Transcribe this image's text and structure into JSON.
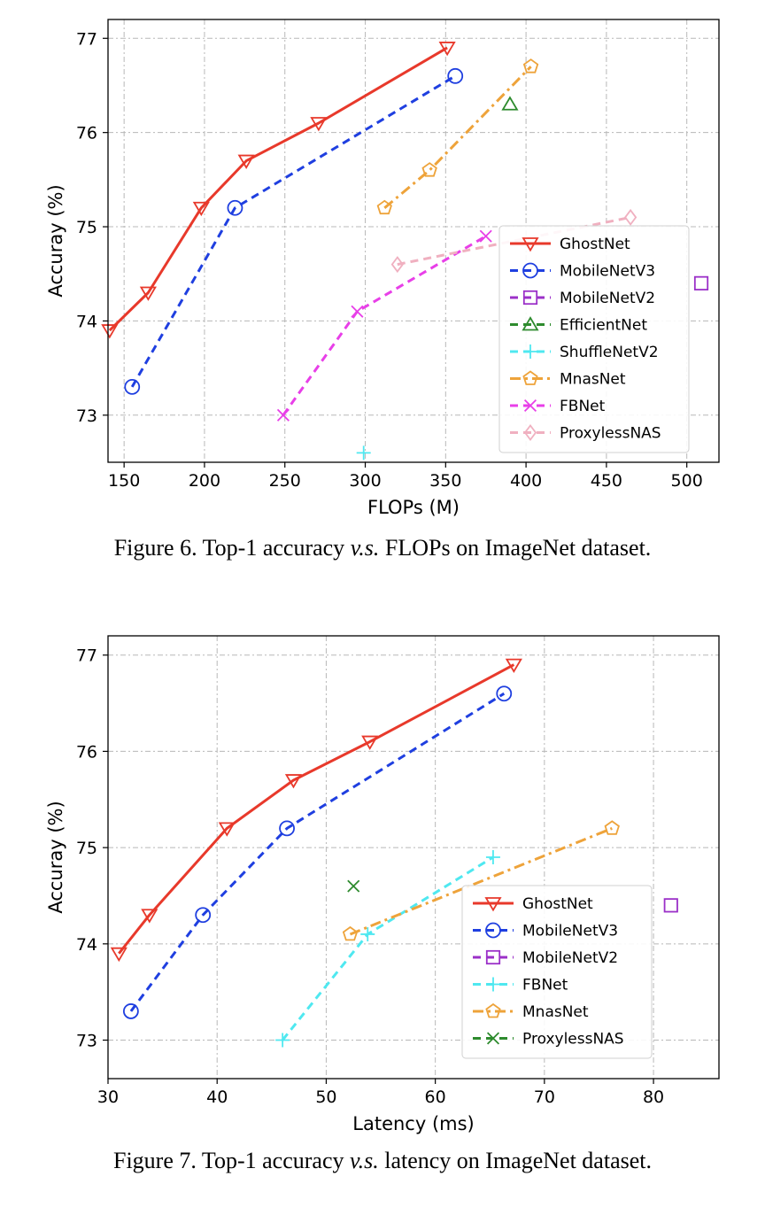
{
  "figures": [
    {
      "caption": {
        "prefix": "Figure 6. Top-1 accuracy ",
        "vs": "v.s.",
        "suffix": " FLOPs on ImageNet dataset."
      }
    },
    {
      "caption": {
        "prefix": "Figure 7. Top-1 accuracy ",
        "vs": "v.s.",
        "suffix": " latency on ImageNet dataset."
      }
    }
  ],
  "chart_data": [
    {
      "type": "line",
      "xlabel": "FLOPs (M)",
      "ylabel": "Accuray (%)",
      "xlim": [
        140,
        520
      ],
      "ylim": [
        72.5,
        77.2
      ],
      "xticks": [
        150,
        200,
        250,
        300,
        350,
        400,
        450,
        500
      ],
      "yticks": [
        73,
        74,
        75,
        76,
        77
      ],
      "grid": true,
      "legend_position": "center-right",
      "series": [
        {
          "name": "GhostNet",
          "color": "#e8392b",
          "marker": "triangle-down",
          "dash": "solid",
          "x": [
            141,
            165,
            198,
            226,
            271,
            351
          ],
          "y": [
            73.9,
            74.3,
            75.2,
            75.7,
            76.1,
            76.9
          ]
        },
        {
          "name": "MobileNetV3",
          "color": "#1f3fe0",
          "marker": "circle",
          "dash": "dashed",
          "x": [
            155,
            219,
            356
          ],
          "y": [
            73.3,
            75.2,
            76.6
          ]
        },
        {
          "name": "MobileNetV2",
          "color": "#9b30c8",
          "marker": "square",
          "dash": "dashed",
          "x": [
            509
          ],
          "y": [
            74.4
          ]
        },
        {
          "name": "EfficientNet",
          "color": "#2e8b2e",
          "marker": "triangle-up",
          "dash": "dashed",
          "x": [
            390
          ],
          "y": [
            76.3
          ]
        },
        {
          "name": "ShuffleNetV2",
          "color": "#4fe8f0",
          "marker": "plus",
          "dash": "dashed",
          "x": [
            299
          ],
          "y": [
            72.6
          ]
        },
        {
          "name": "MnasNet",
          "color": "#eea33a",
          "marker": "pentagon",
          "dash": "dashdot",
          "x": [
            312,
            340,
            403
          ],
          "y": [
            75.2,
            75.6,
            76.7
          ]
        },
        {
          "name": "FBNet",
          "color": "#e83fe8",
          "marker": "x",
          "dash": "dashed",
          "x": [
            249,
            295,
            375
          ],
          "y": [
            73.0,
            74.1,
            74.9
          ]
        },
        {
          "name": "ProxylessNAS",
          "color": "#f0b0c0",
          "marker": "diamond",
          "dash": "dashed",
          "x": [
            320,
            465
          ],
          "y": [
            74.6,
            75.1
          ]
        }
      ]
    },
    {
      "type": "line",
      "xlabel": "Latency (ms)",
      "ylabel": "Accuray (%)",
      "xlim": [
        30,
        86
      ],
      "ylim": [
        72.6,
        77.2
      ],
      "xticks": [
        30,
        40,
        50,
        60,
        70,
        80
      ],
      "yticks": [
        73,
        74,
        75,
        76,
        77
      ],
      "grid": true,
      "legend_position": "lower-right",
      "series": [
        {
          "name": "GhostNet",
          "color": "#e8392b",
          "marker": "triangle-down",
          "dash": "solid",
          "x": [
            31,
            33.8,
            40.9,
            47,
            54,
            67.2
          ],
          "y": [
            73.9,
            74.3,
            75.2,
            75.7,
            76.1,
            76.9
          ]
        },
        {
          "name": "MobileNetV3",
          "color": "#1f3fe0",
          "marker": "circle",
          "dash": "dashed",
          "x": [
            32.1,
            38.7,
            46.4,
            66.3
          ],
          "y": [
            73.3,
            74.3,
            75.2,
            76.6
          ]
        },
        {
          "name": "MobileNetV2",
          "color": "#9b30c8",
          "marker": "square",
          "dash": "dashed",
          "x": [
            81.6
          ],
          "y": [
            74.4
          ]
        },
        {
          "name": "FBNet",
          "color": "#4fe8f0",
          "marker": "plus",
          "dash": "dashed",
          "x": [
            46,
            53.8,
            65.3
          ],
          "y": [
            73.0,
            74.1,
            74.9
          ]
        },
        {
          "name": "MnasNet",
          "color": "#eea33a",
          "marker": "pentagon",
          "dash": "dashdot",
          "x": [
            52.2,
            76.2
          ],
          "y": [
            74.1,
            75.2
          ]
        },
        {
          "name": "ProxylessNAS",
          "color": "#2e8b2e",
          "marker": "x",
          "dash": "dashed",
          "x": [
            52.5
          ],
          "y": [
            74.6
          ]
        }
      ]
    }
  ]
}
